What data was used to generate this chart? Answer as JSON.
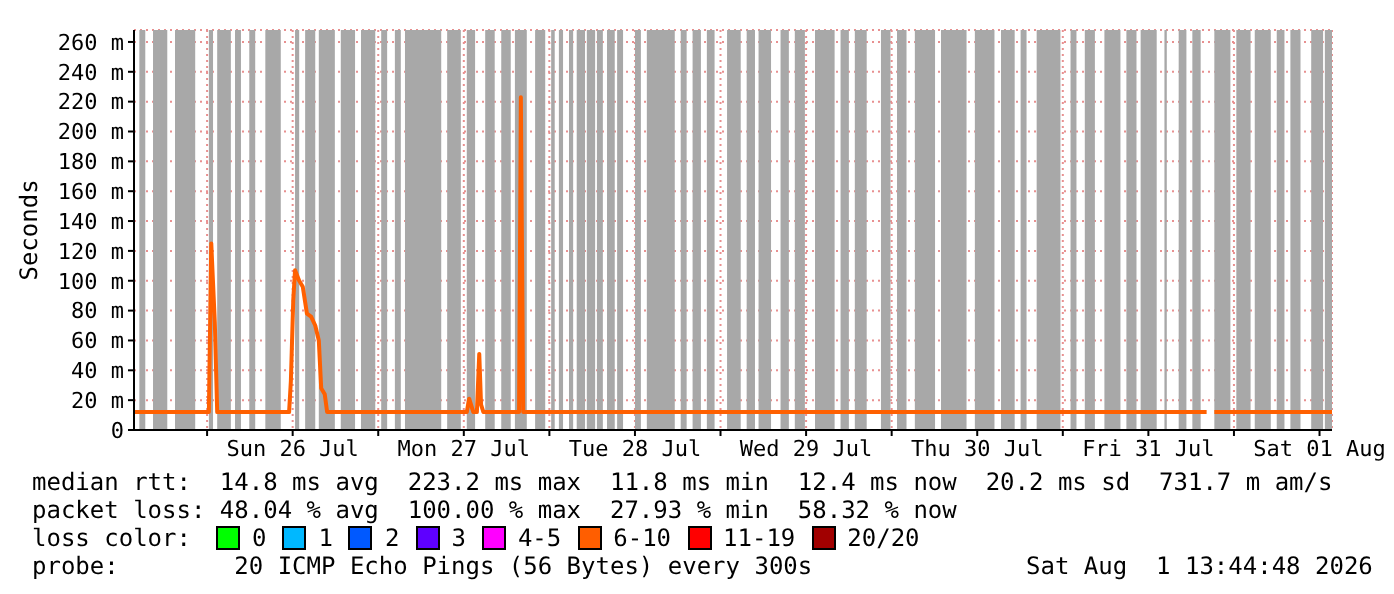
{
  "chart_data": {
    "type": "line",
    "ylabel": "Seconds",
    "x": [
      "2026-07-25T13:45",
      "2026-07-26T00:15",
      "2026-07-26T00:35",
      "2026-07-26T01:05",
      "2026-07-26T01:25",
      "2026-07-26T11:30",
      "2026-07-26T11:45",
      "2026-07-26T12:05",
      "2026-07-26T12:20",
      "2026-07-26T12:55",
      "2026-07-26T13:25",
      "2026-07-26T14:00",
      "2026-07-26T14:35",
      "2026-07-26T15:10",
      "2026-07-26T15:40",
      "2026-07-26T16:00",
      "2026-07-26T16:30",
      "2026-07-26T16:50",
      "2026-07-27T12:25",
      "2026-07-27T12:45",
      "2026-07-27T13:20",
      "2026-07-27T13:50",
      "2026-07-27T14:10",
      "2026-07-27T14:25",
      "2026-07-27T14:45",
      "2026-07-27T19:45",
      "2026-07-27T20:00",
      "2026-07-27T20:20",
      "2026-07-31T20:10",
      "2026-07-31T20:25",
      "2026-07-31T21:15",
      "2026-08-01T13:45"
    ],
    "series": [
      {
        "color": "#ff6000",
        "values": [
          12,
          12,
          125,
          72,
          12,
          12,
          33,
          87,
          107,
          100,
          96,
          78,
          76,
          70,
          60,
          28,
          24,
          12,
          12,
          21,
          12,
          12,
          51,
          17,
          12,
          12,
          223,
          12,
          12,
          null,
          12,
          12
        ]
      }
    ],
    "xlim": [
      "2026-07-25T13:45",
      "2026-08-01T13:45"
    ],
    "xticks": [
      {
        "value": "2026-07-26T00:00",
        "label": null
      },
      {
        "value": "2026-07-26T12:00",
        "label": "Sun 26 Jul"
      },
      {
        "value": "2026-07-27T00:00",
        "label": null
      },
      {
        "value": "2026-07-27T12:00",
        "label": "Mon 27 Jul"
      },
      {
        "value": "2026-07-28T00:00",
        "label": null
      },
      {
        "value": "2026-07-28T12:00",
        "label": "Tue 28 Jul"
      },
      {
        "value": "2026-07-29T00:00",
        "label": null
      },
      {
        "value": "2026-07-29T12:00",
        "label": "Wed 29 Jul"
      },
      {
        "value": "2026-07-30T00:00",
        "label": null
      },
      {
        "value": "2026-07-30T12:00",
        "label": "Thu 30 Jul"
      },
      {
        "value": "2026-07-31T00:00",
        "label": null
      },
      {
        "value": "2026-07-31T12:00",
        "label": "Fri 31 Jul"
      },
      {
        "value": "2026-08-01T00:00",
        "label": null
      },
      {
        "value": "2026-08-01T12:00",
        "label": "Sat 01 Aug"
      }
    ],
    "ylim": [
      0,
      268
    ],
    "yticks": [
      0,
      {
        "value": 20,
        "label": "20 m"
      },
      {
        "value": 40,
        "label": "40 m"
      },
      {
        "value": 60,
        "label": "60 m"
      },
      {
        "value": 80,
        "label": "80 m"
      },
      {
        "value": 100,
        "label": "100 m"
      },
      {
        "value": 120,
        "label": "120 m"
      },
      {
        "value": 140,
        "label": "140 m"
      },
      {
        "value": 160,
        "label": "160 m"
      },
      {
        "value": 180,
        "label": "180 m"
      },
      {
        "value": 200,
        "label": "200 m"
      },
      {
        "value": 220,
        "label": "220 m"
      },
      {
        "value": 240,
        "label": "240 m"
      },
      {
        "value": 260,
        "label": "260 m"
      }
    ],
    "grid": true,
    "legend": false,
    "marker": "none",
    "line_style": "solid",
    "bands": [
      {
        "axis": "x",
        "from": "2026-07-25T14:30",
        "to": "2026-07-25T15:20",
        "color": "#a8a8a8"
      },
      {
        "axis": "x",
        "from": "2026-07-25T16:25",
        "to": "2026-07-25T18:25",
        "color": "#a8a8a8"
      },
      {
        "axis": "x",
        "from": "2026-07-25T19:30",
        "to": "2026-07-25T22:20",
        "color": "#a8a8a8"
      },
      {
        "axis": "x",
        "from": "2026-07-26T00:15",
        "to": "2026-07-26T00:50",
        "color": "#a8a8a8"
      },
      {
        "axis": "x",
        "from": "2026-07-26T01:25",
        "to": "2026-07-26T03:20",
        "color": "#a8a8a8"
      },
      {
        "axis": "x",
        "from": "2026-07-26T03:55",
        "to": "2026-07-26T04:45",
        "color": "#a8a8a8"
      },
      {
        "axis": "x",
        "from": "2026-07-26T05:55",
        "to": "2026-07-26T06:45",
        "color": "#a8a8a8"
      },
      {
        "axis": "x",
        "from": "2026-07-26T08:10",
        "to": "2026-07-26T10:20",
        "color": "#a8a8a8"
      },
      {
        "axis": "x",
        "from": "2026-07-26T12:20",
        "to": "2026-07-26T12:55",
        "color": "#a8a8a8"
      },
      {
        "axis": "x",
        "from": "2026-07-26T13:45",
        "to": "2026-07-26T15:10",
        "color": "#a8a8a8"
      },
      {
        "axis": "x",
        "from": "2026-07-26T15:40",
        "to": "2026-07-26T17:55",
        "color": "#a8a8a8"
      },
      {
        "axis": "x",
        "from": "2026-07-26T18:45",
        "to": "2026-07-26T20:45",
        "color": "#a8a8a8"
      },
      {
        "axis": "x",
        "from": "2026-07-26T21:35",
        "to": "2026-07-26T23:35",
        "color": "#a8a8a8"
      },
      {
        "axis": "x",
        "from": "2026-07-27T00:25",
        "to": "2026-07-27T01:15",
        "color": "#a8a8a8"
      },
      {
        "axis": "x",
        "from": "2026-07-27T02:20",
        "to": "2026-07-27T03:10",
        "color": "#a8a8a8"
      },
      {
        "axis": "x",
        "from": "2026-07-27T03:45",
        "to": "2026-07-27T08:50",
        "color": "#a8a8a8"
      },
      {
        "axis": "x",
        "from": "2026-07-27T09:40",
        "to": "2026-07-27T11:35",
        "color": "#a8a8a8"
      },
      {
        "axis": "x",
        "from": "2026-07-27T12:25",
        "to": "2026-07-27T13:35",
        "color": "#a8a8a8"
      },
      {
        "axis": "x",
        "from": "2026-07-27T15:00",
        "to": "2026-07-27T16:20",
        "color": "#a8a8a8"
      },
      {
        "axis": "x",
        "from": "2026-07-27T17:15",
        "to": "2026-07-27T18:35",
        "color": "#a8a8a8"
      },
      {
        "axis": "x",
        "from": "2026-07-27T19:10",
        "to": "2026-07-27T20:50",
        "color": "#a8a8a8"
      },
      {
        "axis": "x",
        "from": "2026-07-27T22:00",
        "to": "2026-07-27T23:25",
        "color": "#a8a8a8"
      },
      {
        "axis": "x",
        "from": "2026-07-28T00:15",
        "to": "2026-07-28T00:45",
        "color": "#a8a8a8"
      },
      {
        "axis": "x",
        "from": "2026-07-28T01:20",
        "to": "2026-07-28T01:55",
        "color": "#a8a8a8"
      },
      {
        "axis": "x",
        "from": "2026-07-28T02:45",
        "to": "2026-07-28T03:20",
        "color": "#a8a8a8"
      },
      {
        "axis": "x",
        "from": "2026-07-28T03:50",
        "to": "2026-07-28T05:00",
        "color": "#a8a8a8"
      },
      {
        "axis": "x",
        "from": "2026-07-28T05:15",
        "to": "2026-07-28T06:25",
        "color": "#a8a8a8"
      },
      {
        "axis": "x",
        "from": "2026-07-28T06:40",
        "to": "2026-07-28T07:30",
        "color": "#a8a8a8"
      },
      {
        "axis": "x",
        "from": "2026-07-28T08:05",
        "to": "2026-07-28T09:10",
        "color": "#a8a8a8"
      },
      {
        "axis": "x",
        "from": "2026-07-28T09:30",
        "to": "2026-07-28T10:20",
        "color": "#a8a8a8"
      },
      {
        "axis": "x",
        "from": "2026-07-28T12:00",
        "to": "2026-07-28T12:50",
        "color": "#a8a8a8"
      },
      {
        "axis": "x",
        "from": "2026-07-28T13:40",
        "to": "2026-07-28T17:35",
        "color": "#a8a8a8"
      },
      {
        "axis": "x",
        "from": "2026-07-28T18:25",
        "to": "2026-07-28T19:15",
        "color": "#a8a8a8"
      },
      {
        "axis": "x",
        "from": "2026-07-28T20:05",
        "to": "2026-07-28T21:15",
        "color": "#a8a8a8"
      },
      {
        "axis": "x",
        "from": "2026-07-28T22:05",
        "to": "2026-07-28T23:10",
        "color": "#a8a8a8"
      },
      {
        "axis": "x",
        "from": "2026-07-29T00:55",
        "to": "2026-07-29T02:50",
        "color": "#a8a8a8"
      },
      {
        "axis": "x",
        "from": "2026-07-29T03:40",
        "to": "2026-07-29T04:50",
        "color": "#a8a8a8"
      },
      {
        "axis": "x",
        "from": "2026-07-29T05:20",
        "to": "2026-07-29T07:05",
        "color": "#a8a8a8"
      },
      {
        "axis": "x",
        "from": "2026-07-29T08:25",
        "to": "2026-07-29T09:35",
        "color": "#a8a8a8"
      },
      {
        "axis": "x",
        "from": "2026-07-29T10:25",
        "to": "2026-07-29T11:50",
        "color": "#a8a8a8"
      },
      {
        "axis": "x",
        "from": "2026-07-29T13:15",
        "to": "2026-07-29T16:00",
        "color": "#a8a8a8"
      },
      {
        "axis": "x",
        "from": "2026-07-29T16:50",
        "to": "2026-07-29T18:00",
        "color": "#a8a8a8"
      },
      {
        "axis": "x",
        "from": "2026-07-29T18:50",
        "to": "2026-07-29T20:30",
        "color": "#a8a8a8"
      },
      {
        "axis": "x",
        "from": "2026-07-29T22:30",
        "to": "2026-07-29T23:50",
        "color": "#a8a8a8"
      },
      {
        "axis": "x",
        "from": "2026-07-30T00:45",
        "to": "2026-07-30T02:05",
        "color": "#a8a8a8"
      },
      {
        "axis": "x",
        "from": "2026-07-30T03:15",
        "to": "2026-07-30T06:05",
        "color": "#a8a8a8"
      },
      {
        "axis": "x",
        "from": "2026-07-30T06:55",
        "to": "2026-07-30T10:30",
        "color": "#a8a8a8"
      },
      {
        "axis": "x",
        "from": "2026-07-30T11:40",
        "to": "2026-07-30T14:25",
        "color": "#a8a8a8"
      },
      {
        "axis": "x",
        "from": "2026-07-30T15:20",
        "to": "2026-07-30T17:15",
        "color": "#a8a8a8"
      },
      {
        "axis": "x",
        "from": "2026-07-30T18:05",
        "to": "2026-07-30T18:55",
        "color": "#a8a8a8"
      },
      {
        "axis": "x",
        "from": "2026-07-30T20:20",
        "to": "2026-07-30T23:40",
        "color": "#a8a8a8"
      },
      {
        "axis": "x",
        "from": "2026-07-31T01:05",
        "to": "2026-07-31T01:55",
        "color": "#a8a8a8"
      },
      {
        "axis": "x",
        "from": "2026-07-31T03:05",
        "to": "2026-07-31T04:30",
        "color": "#a8a8a8"
      },
      {
        "axis": "x",
        "from": "2026-07-31T05:50",
        "to": "2026-07-31T08:05",
        "color": "#a8a8a8"
      },
      {
        "axis": "x",
        "from": "2026-07-31T08:55",
        "to": "2026-07-31T10:20",
        "color": "#a8a8a8"
      },
      {
        "axis": "x",
        "from": "2026-07-31T10:55",
        "to": "2026-07-31T13:10",
        "color": "#a8a8a8"
      },
      {
        "axis": "x",
        "from": "2026-07-31T14:15",
        "to": "2026-07-31T14:35",
        "color": "#a8a8a8"
      },
      {
        "axis": "x",
        "from": "2026-07-31T16:15",
        "to": "2026-07-31T17:20",
        "color": "#a8a8a8"
      },
      {
        "axis": "x",
        "from": "2026-07-31T18:10",
        "to": "2026-07-31T19:20",
        "color": "#a8a8a8"
      },
      {
        "axis": "x",
        "from": "2026-07-31T21:15",
        "to": "2026-07-31T23:30",
        "color": "#a8a8a8"
      },
      {
        "axis": "x",
        "from": "2026-08-01T00:20",
        "to": "2026-08-01T02:20",
        "color": "#a8a8a8"
      },
      {
        "axis": "x",
        "from": "2026-08-01T02:55",
        "to": "2026-08-01T05:10",
        "color": "#a8a8a8"
      },
      {
        "axis": "x",
        "from": "2026-08-01T06:00",
        "to": "2026-08-01T07:05",
        "color": "#a8a8a8"
      },
      {
        "axis": "x",
        "from": "2026-08-01T07:55",
        "to": "2026-08-01T09:20",
        "color": "#a8a8a8"
      },
      {
        "axis": "x",
        "from": "2026-08-01T10:50",
        "to": "2026-08-01T12:30",
        "color": "#a8a8a8"
      },
      {
        "axis": "x",
        "from": "2026-08-01T12:45",
        "to": "2026-08-01T13:45",
        "color": "#a8a8a8"
      }
    ],
    "annotations": [
      "median rtt:  14.8 ms avg  223.2 ms max  11.8 ms min  12.4 ms now  20.2 ms sd  731.7 m am/s",
      "packet loss: 48.04 % avg  100.00 % max  27.93 % min  58.32 % now",
      "loss color:",
      "0",
      "1",
      "2",
      "3",
      "4-5",
      "6-10",
      "11-19",
      "20/20",
      "probe:        20 ICMP Echo Pings (56 Bytes) every 300s",
      "Sat Aug  1 13:44:48 2026"
    ]
  }
}
